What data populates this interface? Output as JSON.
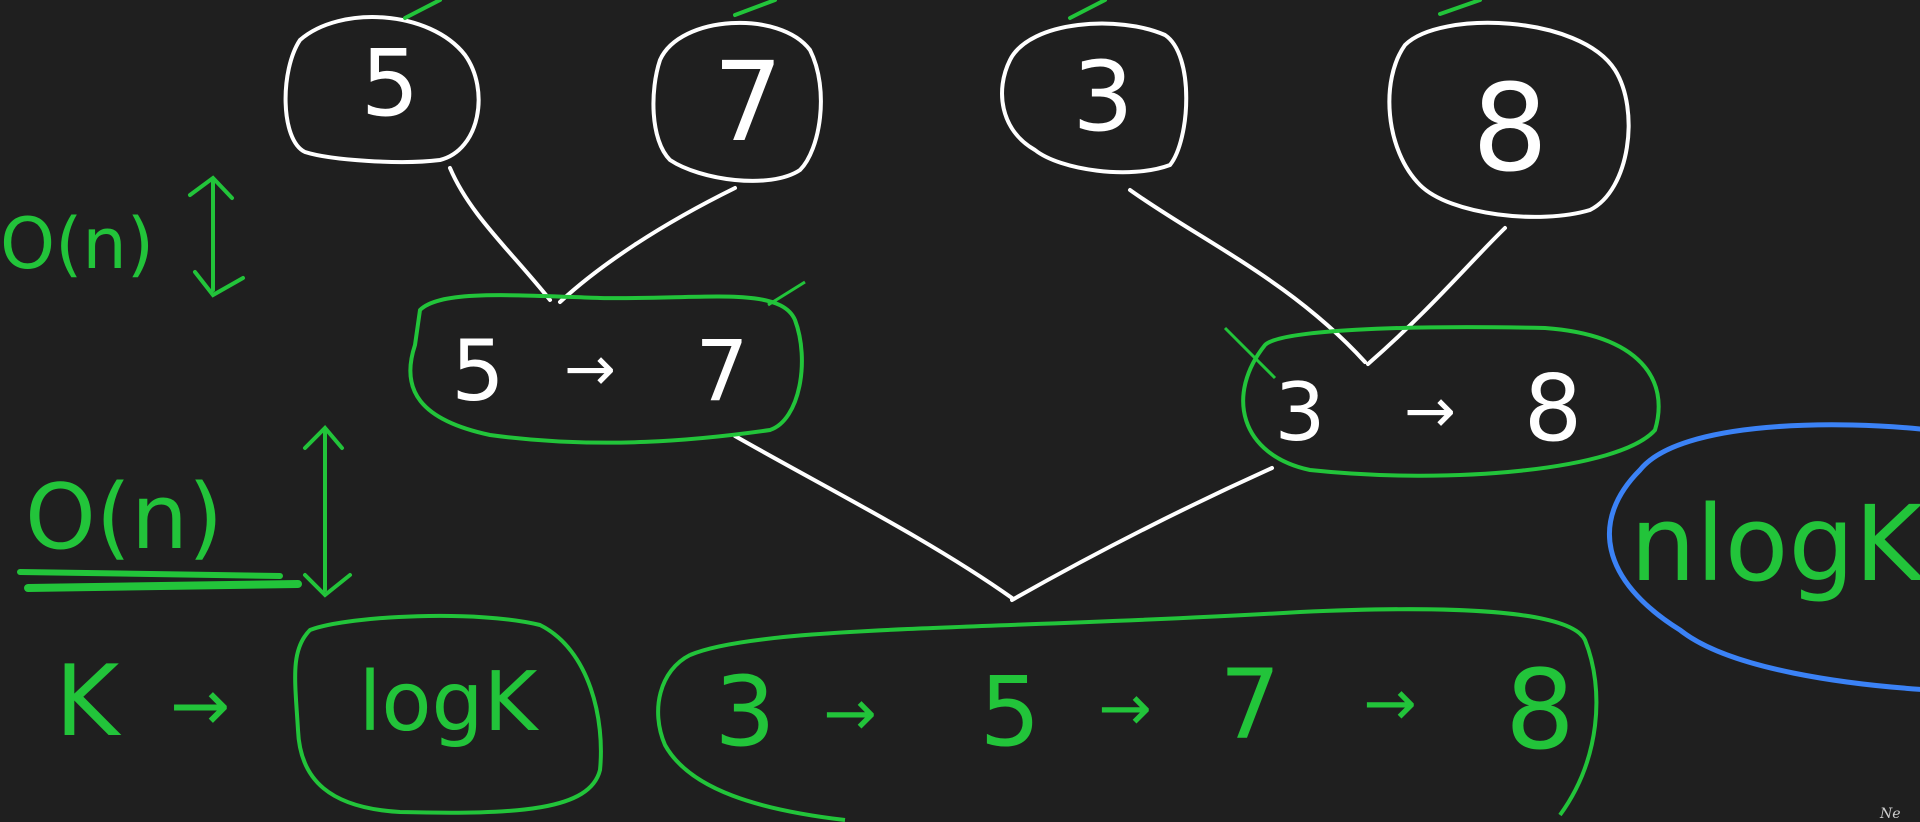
{
  "colors": {
    "background": "#1f1f1f",
    "tree_ink": "#ffffff",
    "annotation_ink": "#22c43a",
    "highlight_ink": "#3b82f6"
  },
  "leaves": [
    "5",
    "7",
    "3",
    "8"
  ],
  "merged_pairs": [
    {
      "left": "5",
      "arrow": "→",
      "right": "7"
    },
    {
      "left": "3",
      "arrow": "→",
      "right": "8"
    }
  ],
  "final_list": [
    "3",
    "5",
    "7",
    "8"
  ],
  "final_arrow": "→",
  "annotations": {
    "level1_cost": "O(n)",
    "level2_cost": "O(n)",
    "levels_prefix": "K",
    "levels_arrow": "→",
    "levels_value": "logK",
    "total": "nlogK"
  },
  "watermark": "Ne"
}
